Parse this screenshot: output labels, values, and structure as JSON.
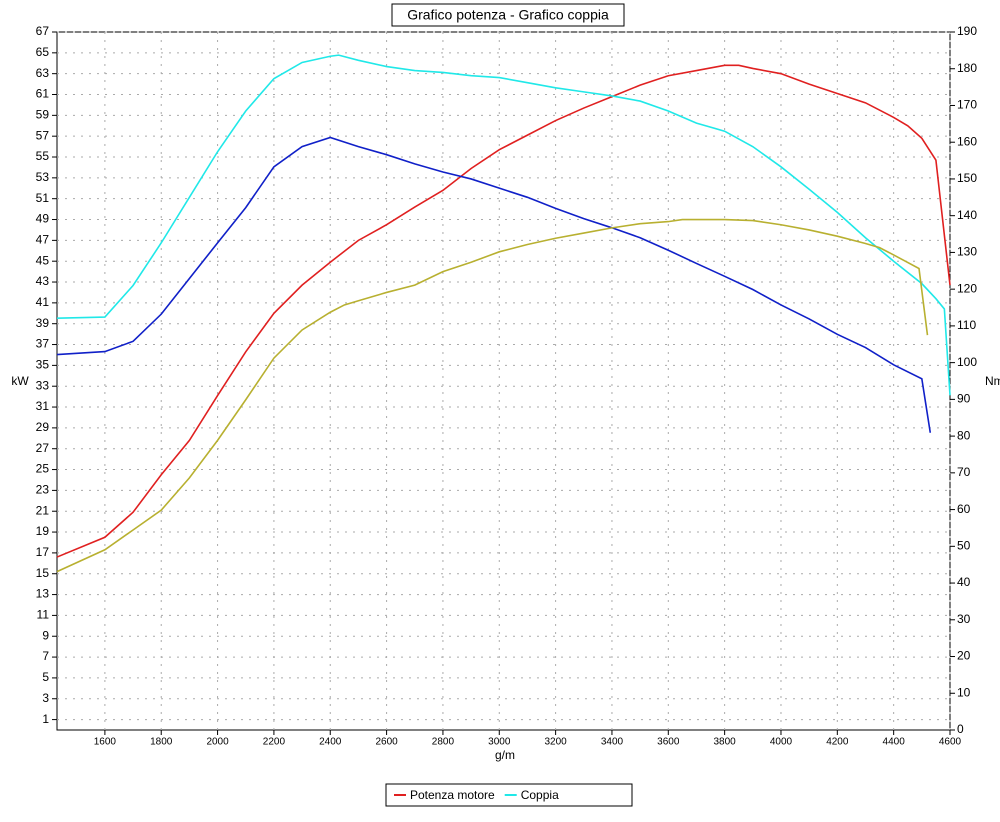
{
  "chart_data": {
    "type": "line",
    "title": "Grafico potenza - Grafico coppia",
    "x_label": "g/m",
    "y_label": "kW",
    "y2_label": "Nm",
    "xlim": [
      1430,
      4600
    ],
    "xticks": [
      1600,
      1800,
      2000,
      2200,
      2400,
      2600,
      2800,
      3000,
      3200,
      3400,
      3600,
      3800,
      4000,
      4200,
      4400,
      4600
    ],
    "ylim": [
      0,
      67
    ],
    "yticks": [
      1,
      3,
      5,
      7,
      9,
      11,
      13,
      15,
      17,
      19,
      21,
      23,
      25,
      27,
      29,
      31,
      33,
      35,
      37,
      39,
      41,
      43,
      45,
      47,
      49,
      51,
      53,
      55,
      57,
      59,
      61,
      63,
      65,
      67
    ],
    "y2lim": [
      0,
      190
    ],
    "y2ticks": [
      0,
      10,
      20,
      30,
      40,
      50,
      60,
      70,
      80,
      90,
      100,
      110,
      120,
      130,
      140,
      150,
      160,
      170,
      180,
      190
    ],
    "grid": true,
    "series": [
      {
        "name": "Potenza motore",
        "color": "#e02020",
        "x": [
          1430,
          1600,
          1700,
          1800,
          1900,
          2000,
          2100,
          2200,
          2300,
          2400,
          2500,
          2600,
          2700,
          2800,
          2900,
          3000,
          3100,
          3200,
          3300,
          3400,
          3500,
          3600,
          3700,
          3800,
          3850,
          3900,
          4000,
          4100,
          4200,
          4300,
          4400,
          4450,
          4500,
          4550,
          4600
        ],
        "values": [
          16.6,
          18.5,
          20.9,
          24.5,
          27.8,
          32.1,
          36.3,
          40,
          42.7,
          44.9,
          47,
          48.5,
          50.2,
          51.8,
          53.9,
          55.7,
          57.1,
          58.5,
          59.7,
          60.8,
          61.9,
          62.8,
          63.3,
          63.8,
          63.8,
          63.5,
          63,
          62,
          61.1,
          60.2,
          58.8,
          58,
          56.8,
          54.7,
          42.7
        ]
      },
      {
        "name": "Coppia",
        "color": "#20e8e8",
        "axis": "y2",
        "x": [
          1430,
          1600,
          1700,
          1800,
          1900,
          2000,
          2100,
          2200,
          2300,
          2400,
          2430,
          2500,
          2600,
          2700,
          2800,
          2900,
          3000,
          3100,
          3200,
          3300,
          3400,
          3500,
          3600,
          3700,
          3800,
          3900,
          4000,
          4100,
          4200,
          4300,
          4400,
          4500,
          4550,
          4580,
          4600
        ],
        "values": [
          112.1,
          112.4,
          121,
          132.6,
          145,
          157.4,
          168.5,
          177.3,
          181.7,
          183.4,
          183.7,
          182.3,
          180.6,
          179.5,
          179,
          178.1,
          177.6,
          176.2,
          174.8,
          173.7,
          172.6,
          171.2,
          168.5,
          165.2,
          163,
          158.8,
          153.3,
          147.2,
          140.9,
          134,
          127.6,
          121.5,
          117.4,
          114.6,
          91.1
        ]
      },
      {
        "color": "#1020c8",
        "axis": "y2",
        "x": [
          1430,
          1600,
          1700,
          1800,
          1900,
          2000,
          2100,
          2200,
          2300,
          2400,
          2500,
          2600,
          2700,
          2800,
          2900,
          3000,
          3100,
          3200,
          3300,
          3400,
          3500,
          3600,
          3700,
          3800,
          3900,
          4000,
          4100,
          4200,
          4300,
          4400,
          4500,
          4530
        ],
        "values": [
          102.2,
          103,
          105.8,
          113.2,
          122.9,
          132.6,
          142.2,
          153.3,
          158.8,
          161.3,
          158.8,
          156.6,
          154.1,
          151.9,
          150,
          147.5,
          145,
          142,
          139.2,
          136.7,
          134,
          130.6,
          127,
          123.5,
          119.9,
          115.7,
          111.9,
          107.7,
          104.1,
          99.4,
          95.6,
          80.9
        ]
      },
      {
        "color": "#b8b030",
        "x": [
          1430,
          1600,
          1700,
          1800,
          1900,
          2000,
          2100,
          2200,
          2300,
          2400,
          2450,
          2500,
          2600,
          2700,
          2800,
          2900,
          3000,
          3100,
          3200,
          3300,
          3400,
          3500,
          3600,
          3650,
          3800,
          3900,
          4000,
          4100,
          4200,
          4300,
          4350,
          4400,
          4490,
          4520
        ],
        "values": [
          15.2,
          17.3,
          19.2,
          21.1,
          24.2,
          27.8,
          31.7,
          35.7,
          38.4,
          40.1,
          40.8,
          41.2,
          42,
          42.7,
          44,
          44.9,
          45.9,
          46.6,
          47.2,
          47.7,
          48.2,
          48.6,
          48.8,
          49,
          49,
          48.9,
          48.5,
          48,
          47.4,
          46.7,
          46.3,
          45.6,
          44.3,
          37.9
        ]
      }
    ]
  }
}
